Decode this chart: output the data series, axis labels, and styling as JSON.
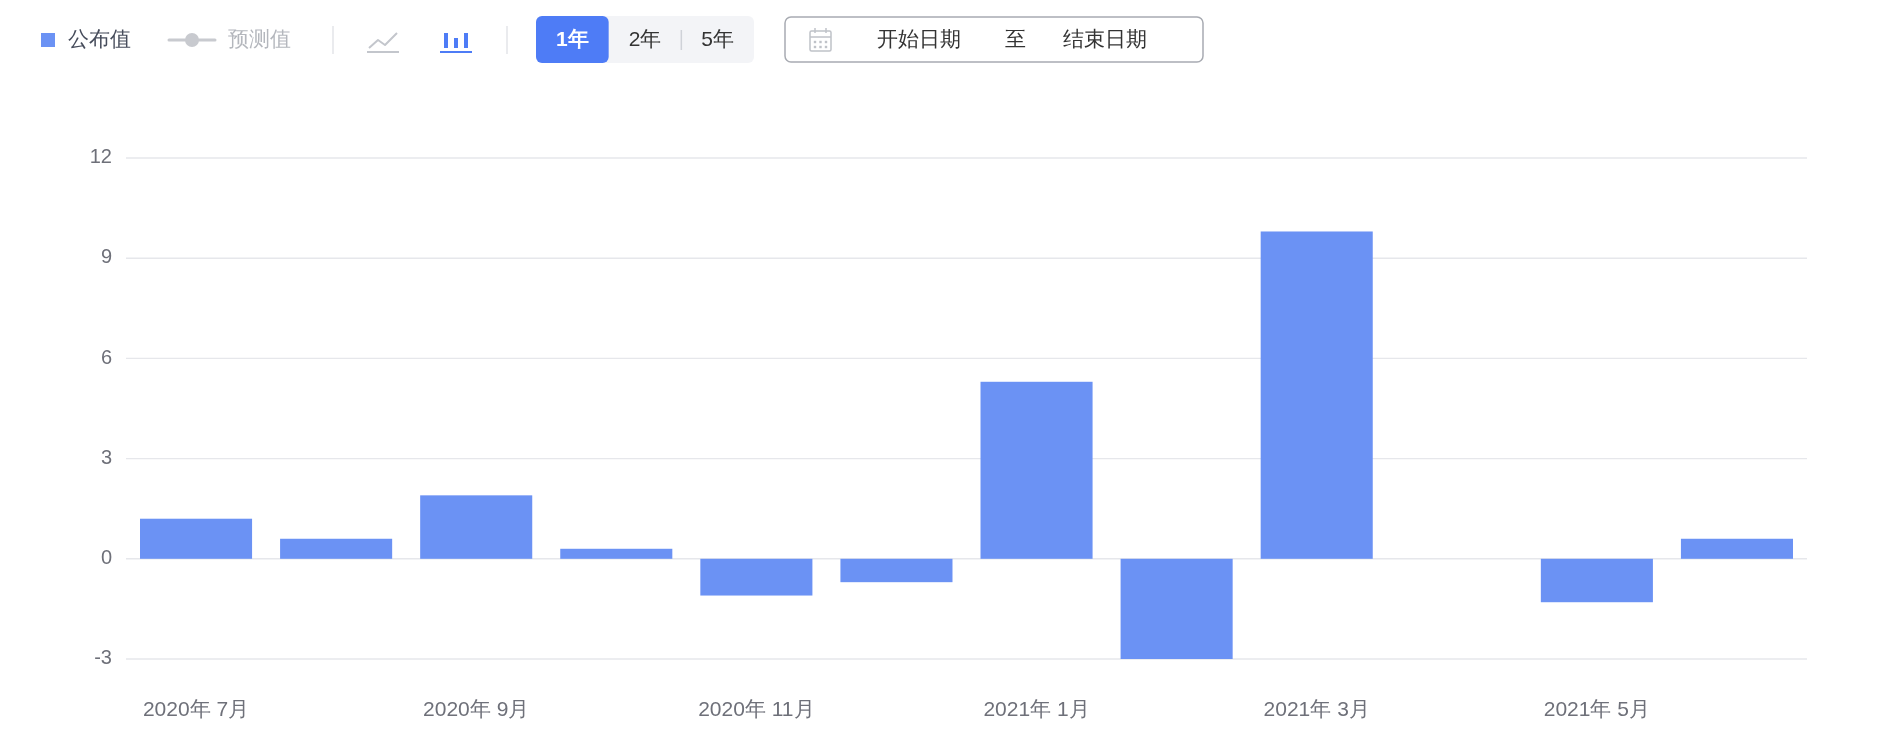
{
  "chart_data": {
    "type": "bar",
    "categories": [
      "2020年 7月",
      null,
      "2020年 9月",
      null,
      "2020年 11月",
      null,
      "2021年 1月",
      null,
      "2021年 3月",
      null,
      "2021年 5月",
      null
    ],
    "series": [
      {
        "name": "公布值",
        "color": "#6b92f4",
        "values": [
          1.2,
          0.6,
          1.9,
          0.3,
          -1.1,
          -0.7,
          5.3,
          -3.0,
          9.8,
          null,
          -1.3,
          0.6
        ]
      },
      {
        "name": "预测值",
        "type": "line",
        "marker": "circle",
        "color": "#c8cacf",
        "values": [
          null,
          null,
          null,
          null,
          null,
          null,
          null,
          null,
          null,
          null,
          null,
          null
        ]
      }
    ],
    "ylim": [
      -3,
      12
    ],
    "yticks": [
      -3,
      0,
      3,
      6,
      9,
      12
    ],
    "grid": "y",
    "legend": "top left",
    "annotations": [
      "1年",
      "2年",
      "5年",
      "开始日期",
      "至",
      "结束日期"
    ]
  }
}
